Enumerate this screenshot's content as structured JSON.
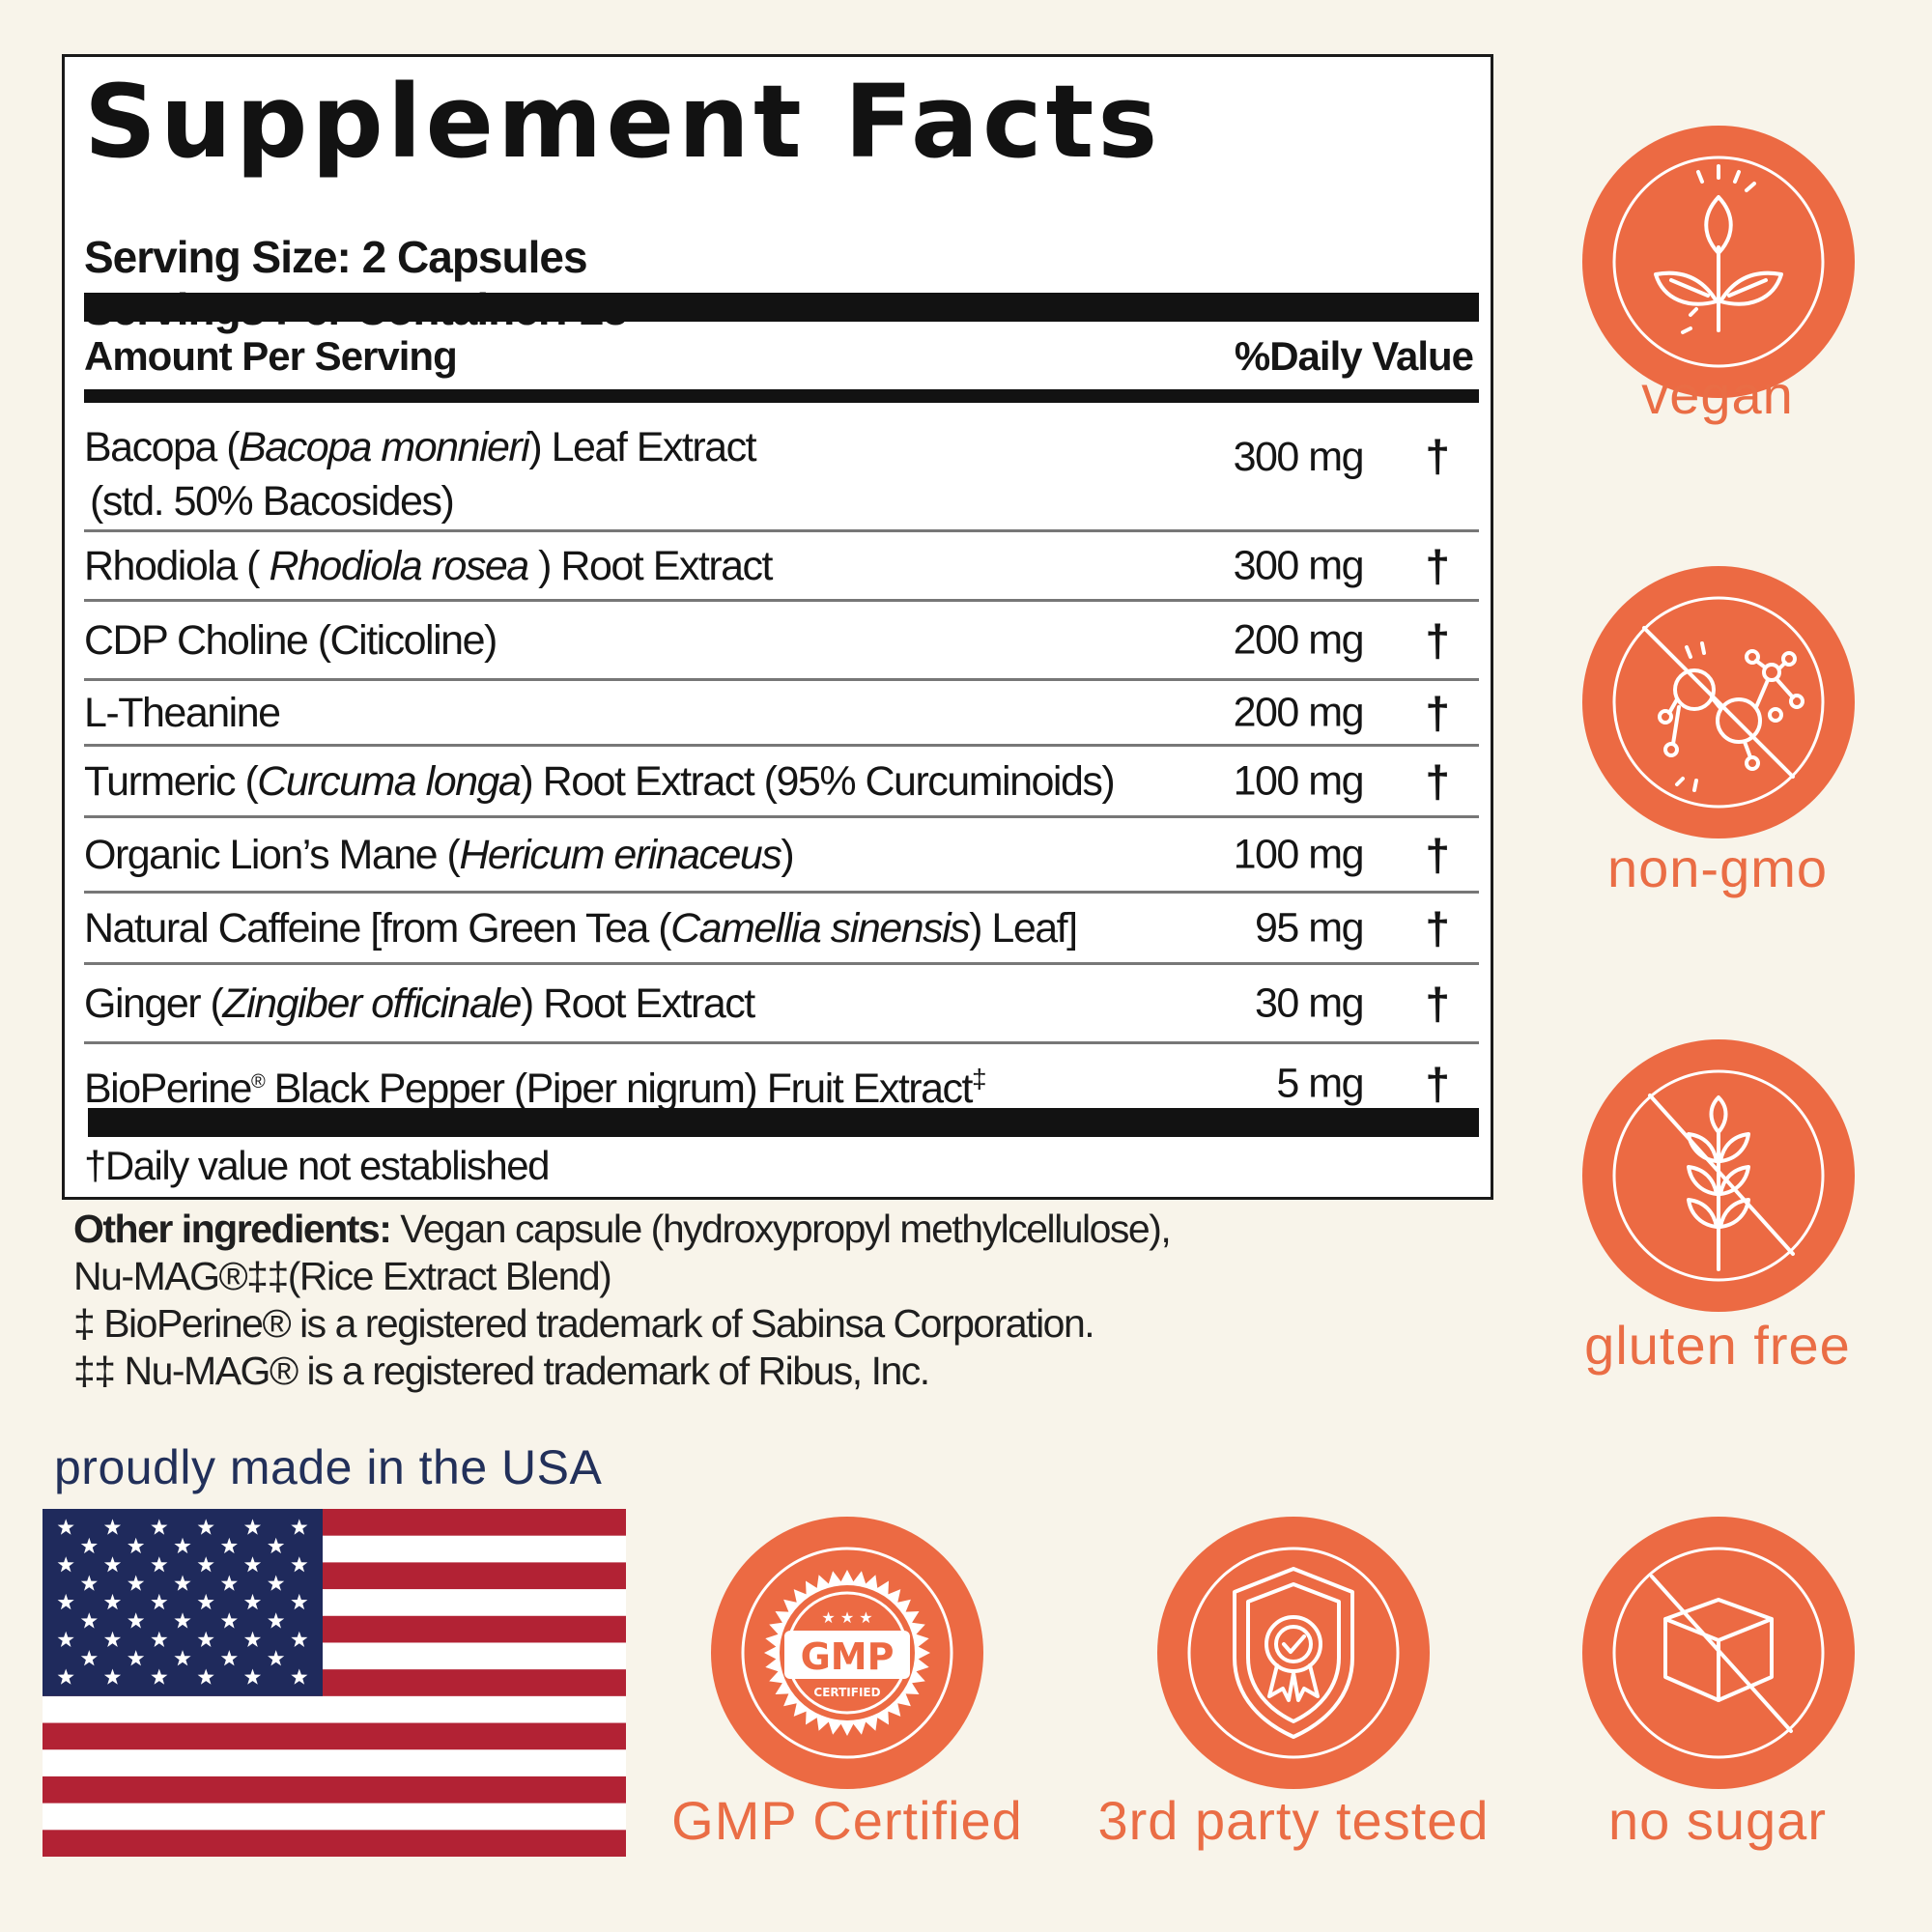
{
  "facts": {
    "title": "Supplement Facts",
    "serving_size": "Serving Size: 2 Capsules",
    "servings_per_container": "Servings Per Container: 28",
    "header_amount": "Amount Per Serving",
    "header_dv": "%Daily Value",
    "rows": [
      {
        "pre": "Bacopa (",
        "latin": "Bacopa monnieri",
        "post": ") Leaf Extract",
        "line2": "(std. 50% Bacosides)",
        "amount": "300 mg",
        "dv": "†"
      },
      {
        "pre": "Rhodiola ( ",
        "latin": "Rhodiola rosea",
        "post": " ) Root Extract",
        "amount": "300 mg",
        "dv": "†"
      },
      {
        "pre": "CDP Choline (Citicoline)",
        "amount": "200 mg",
        "dv": "†"
      },
      {
        "pre": "L-Theanine",
        "amount": "200 mg",
        "dv": "†"
      },
      {
        "pre": "Turmeric (",
        "latin": "Curcuma longa",
        "post": ") Root Extract (95% Curcuminoids)",
        "amount": "100 mg",
        "dv": "†"
      },
      {
        "pre": "Organic Lion’s Mane (",
        "latin": "Hericum erinaceus",
        "post": ")",
        "amount": "100 mg",
        "dv": "†"
      },
      {
        "pre": "Natural Caffeine [from Green Tea (",
        "latin": "Camellia sinensis",
        "post": ") Leaf]",
        "amount": "95 mg",
        "dv": "†"
      },
      {
        "pre": "Ginger (",
        "latin": "Zingiber officinale",
        "post": ") Root Extract",
        "amount": "30 mg",
        "dv": "†"
      },
      {
        "pre": "BioPerine",
        "sup": "®",
        "post": " Black Pepper (Piper nigrum) Fruit Extract",
        "sup2": "‡",
        "amount": "5 mg",
        "dv": "†"
      }
    ],
    "footnote": "†Daily value not established"
  },
  "other": {
    "label": "Other ingredients:",
    "line1": " Vegan capsule (hydroxypropyl methylcellulose),",
    "line2": "Nu-MAG®‡‡(Rice Extract Blend)",
    "line3": "‡ BioPerine® is a registered trademark of Sabinsa Corporation.",
    "line4": "‡‡ Nu-MAG® is a registered trademark of Ribus, Inc."
  },
  "usa": {
    "caption": "proudly made in the USA"
  },
  "badges": {
    "vegan": "vegan",
    "non_gmo": "non-gmo",
    "gluten_free": "gluten free",
    "gmp": "GMP Certified",
    "gmp_text": "GMP",
    "gmp_sub": "CERTIFIED",
    "third_party": "3rd party tested",
    "no_sugar": "no sugar"
  },
  "colors": {
    "accent": "#ec6a43",
    "flag_red": "#b22234",
    "flag_blue": "#1f2a5c"
  }
}
